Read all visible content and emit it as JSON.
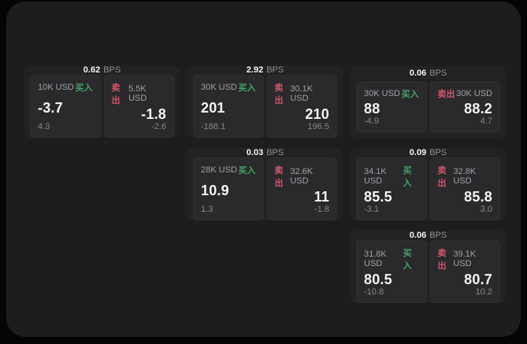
{
  "theme": {
    "outer_bg": "#050506",
    "panel_bg": "#1d1d1f",
    "card_bg": "#222224",
    "tile_bg": "#2a2a2c",
    "text_primary": "#f5f5f5",
    "text_secondary": "#9fa1a4",
    "text_muted": "#86888a",
    "buy_color": "#43a366",
    "sell_color": "#d0566b"
  },
  "labels": {
    "bps_suffix": "BPS",
    "buy": "买入",
    "sell": "卖出"
  },
  "cards": [
    {
      "bps": "0.62",
      "grid": {
        "row": 1,
        "col": 1
      },
      "buy": {
        "amount": "10K USD",
        "value": "-3.7",
        "delta": "4.3"
      },
      "sell": {
        "amount": "5.5K USD",
        "value": "-1.8",
        "delta": "-2.6"
      }
    },
    {
      "bps": "2.92",
      "grid": {
        "row": 1,
        "col": 2
      },
      "buy": {
        "amount": "30K USD",
        "value": "201",
        "delta": "-188.1"
      },
      "sell": {
        "amount": "30.1K USD",
        "value": "210",
        "delta": "196.5"
      }
    },
    {
      "bps": "0.06",
      "grid": {
        "row": 1,
        "col": 3
      },
      "buy": {
        "amount": "30K USD",
        "value": "88",
        "delta": "-4.9"
      },
      "sell": {
        "amount": "30K USD",
        "value": "88.2",
        "delta": "4.7"
      }
    },
    {
      "bps": "0.03",
      "grid": {
        "row": 2,
        "col": 2
      },
      "buy": {
        "amount": "28K USD",
        "value": "10.9",
        "delta": "1.3"
      },
      "sell": {
        "amount": "32.6K USD",
        "value": "11",
        "delta": "-1.8"
      }
    },
    {
      "bps": "0.09",
      "grid": {
        "row": 2,
        "col": 3
      },
      "buy": {
        "amount": "34.1K USD",
        "value": "85.5",
        "delta": "-3.1"
      },
      "sell": {
        "amount": "32.8K USD",
        "value": "85.8",
        "delta": "3.0"
      }
    },
    {
      "bps": "0.06",
      "grid": {
        "row": 3,
        "col": 3
      },
      "buy": {
        "amount": "31.8K USD",
        "value": "80.5",
        "delta": "-10.8"
      },
      "sell": {
        "amount": "39.1K USD",
        "value": "80.7",
        "delta": "10.2"
      }
    }
  ]
}
